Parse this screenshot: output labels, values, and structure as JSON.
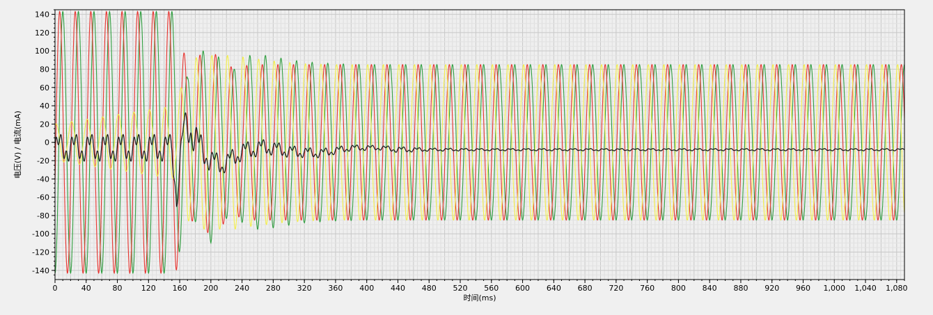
{
  "chart_data": {
    "type": "line",
    "title": "",
    "xlabel": "时间(ms)",
    "ylabel": "电压(V) / 电流(mA)",
    "xlim": [
      0,
      1090
    ],
    "ylim": [
      -150,
      145
    ],
    "grid": true,
    "legend": "none",
    "x_ticks": [
      0,
      40,
      80,
      120,
      160,
      200,
      240,
      280,
      320,
      360,
      400,
      440,
      480,
      520,
      560,
      600,
      640,
      680,
      720,
      760,
      800,
      840,
      880,
      920,
      960,
      1000,
      1040,
      1080
    ],
    "x_tick_labels": [
      "0",
      "40",
      "80",
      "120",
      "160",
      "200",
      "240",
      "280",
      "320",
      "360",
      "400",
      "440",
      "480",
      "520",
      "560",
      "600",
      "640",
      "680",
      "720",
      "760",
      "800",
      "840",
      "880",
      "920",
      "960",
      "1,000",
      "1,040",
      "1,080"
    ],
    "y_ticks": [
      140,
      120,
      100,
      80,
      60,
      40,
      20,
      0,
      -20,
      -40,
      -60,
      -80,
      -100,
      -120,
      -140
    ],
    "y_tick_labels": [
      "140",
      "120",
      "100",
      "80",
      "60",
      "40",
      "20",
      "0",
      "-20",
      "-40",
      "-60",
      "-80",
      "-100",
      "-120",
      "-140"
    ],
    "frequency_hz": 50,
    "series": [
      {
        "color": "#2e9e3e",
        "kind": "voltage",
        "phase_deg": -90,
        "time_offset_ms": 0,
        "envelope_ms": [
          0,
          155,
          170,
          185,
          200,
          215,
          230,
          250,
          270,
          290,
          320,
          360,
          400,
          480,
          1090
        ],
        "envelope_amp": [
          143,
          143,
          70,
          95,
          110,
          85,
          80,
          95,
          95,
          92,
          88,
          86,
          85,
          85,
          85
        ]
      },
      {
        "color": "#e8332e",
        "kind": "voltage",
        "phase_deg": -90,
        "time_offset_ms": 4,
        "envelope_ms": [
          0,
          155,
          170,
          185,
          200,
          215,
          230,
          250,
          270,
          290,
          320,
          360,
          400,
          480,
          1090
        ],
        "envelope_amp": [
          143,
          143,
          80,
          95,
          100,
          90,
          80,
          85,
          85,
          85,
          85,
          85,
          85,
          85,
          85
        ]
      },
      {
        "color": "#f5f04a",
        "kind": "voltage",
        "phase_deg": 30,
        "time_offset_ms": 2,
        "envelope_ms": [
          0,
          155,
          170,
          185,
          200,
          215,
          230,
          250,
          270,
          290,
          320,
          360,
          400,
          480,
          1090
        ],
        "envelope_amp": [
          20,
          40,
          85,
          95,
          95,
          95,
          95,
          92,
          90,
          88,
          86,
          85,
          85,
          85,
          85
        ]
      },
      {
        "color": "#222222",
        "kind": "current",
        "envelope_ms": [
          0,
          150,
          156,
          165,
          175,
          185,
          200,
          215,
          240,
          270,
          300,
          340,
          380,
          420,
          440,
          460,
          480,
          560,
          1090
        ],
        "baseline": [
          -6,
          -6,
          -60,
          15,
          15,
          -5,
          -20,
          -25,
          -10,
          -5,
          -10,
          -12,
          -6,
          -6,
          -8,
          -8,
          -8,
          -8,
          -8
        ],
        "ripple_amp": [
          18,
          18,
          20,
          20,
          25,
          20,
          15,
          12,
          12,
          10,
          8,
          6,
          4,
          3,
          4,
          3,
          2,
          1.5,
          1.5
        ]
      }
    ]
  }
}
